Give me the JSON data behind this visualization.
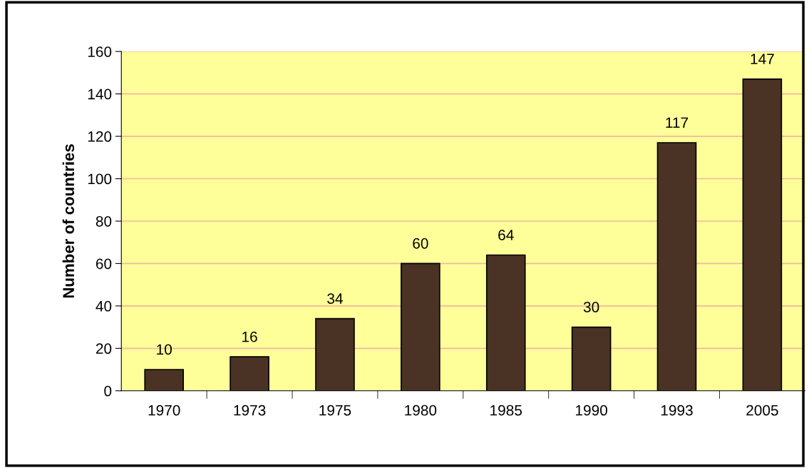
{
  "chart_data": {
    "type": "bar",
    "ylabel": "Number of countries",
    "categories": [
      "1970",
      "1973",
      "1975",
      "1980",
      "1985",
      "1990",
      "1993",
      "2005"
    ],
    "values": [
      10,
      16,
      34,
      60,
      64,
      30,
      117,
      147
    ],
    "color": "#4a3324",
    "ylim": [
      0,
      160
    ],
    "yticks": [
      0,
      20,
      40,
      60,
      80,
      100,
      120,
      140,
      160
    ],
    "grid": "y",
    "data_labels": true
  }
}
